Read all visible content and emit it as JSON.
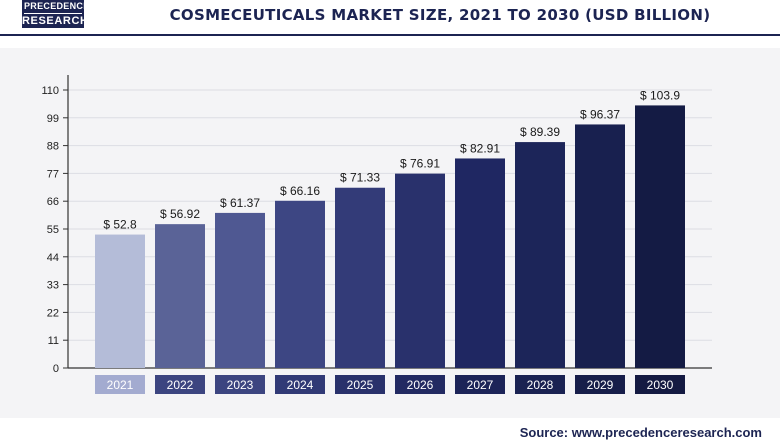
{
  "header": {
    "logo_line1": "PRECEDENCE",
    "logo_line2": "RESEARCH",
    "title": "COSMECEUTICALS MARKET SIZE, 2021 TO 2030 (USD BILLION)"
  },
  "source": "Source: www.precedenceresearch.com",
  "chart_data": {
    "type": "bar",
    "title": "COSMECEUTICALS MARKET SIZE, 2021 TO 2030 (USD BILLION)",
    "xlabel": "",
    "ylabel": "",
    "categories": [
      "2021",
      "2022",
      "2023",
      "2024",
      "2025",
      "2026",
      "2027",
      "2028",
      "2029",
      "2030"
    ],
    "values": [
      52.8,
      56.92,
      61.37,
      66.16,
      71.33,
      76.91,
      82.91,
      89.39,
      96.37,
      103.9
    ],
    "data_labels": [
      "$ 52.8",
      "$ 56.92",
      "$ 61.37",
      "$ 66.16",
      "$ 71.33",
      "$ 76.91",
      "$ 82.91",
      "$ 89.39",
      "$ 96.37",
      "$ 103.9"
    ],
    "ylim": [
      0,
      110
    ],
    "yticks": [
      0,
      11,
      22,
      33,
      44,
      55,
      66,
      77,
      88,
      99,
      110
    ],
    "grid": true,
    "bar_colors": [
      "#b4bcd8",
      "#5a6397",
      "#4f5892",
      "#3d4683",
      "#333b78",
      "#29316c",
      "#1f2762",
      "#1c2559",
      "#18204f",
      "#141b44"
    ],
    "label_box_colors": [
      "#a3abd0",
      "#3c4580",
      "#3c4580",
      "#313a76",
      "#29316b",
      "#222a62",
      "#1c2458",
      "#1a2252",
      "#171e4a",
      "#141a42"
    ]
  }
}
